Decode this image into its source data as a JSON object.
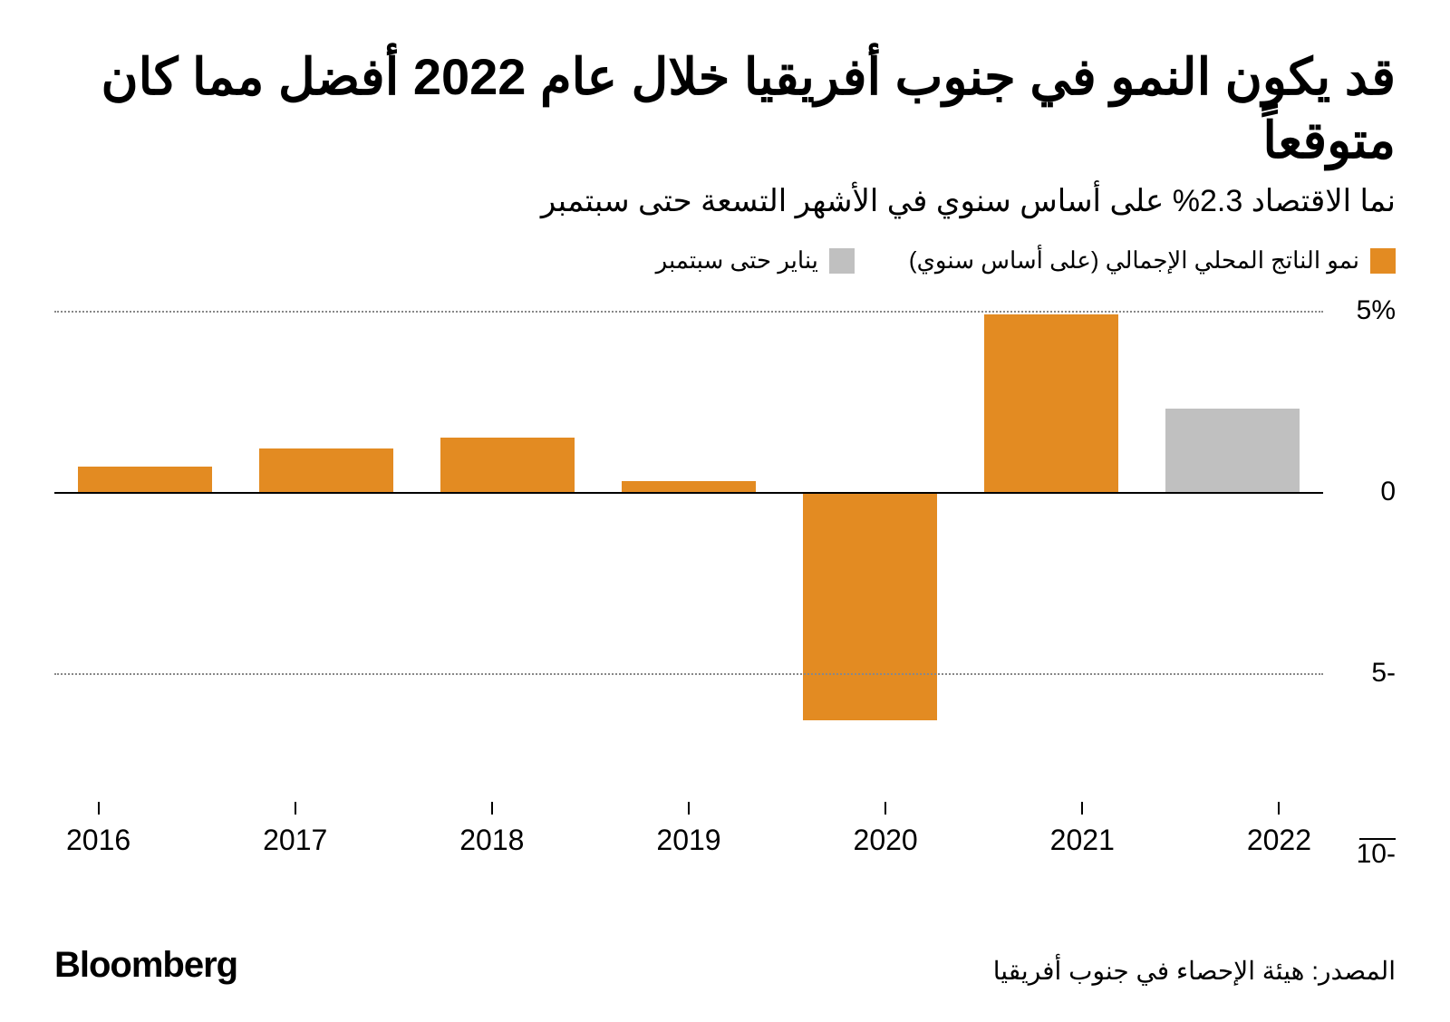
{
  "title": "قد يكون النمو في جنوب أفريقيا خلال عام 2022 أفضل مما كان متوقعاً",
  "subtitle": "نما الاقتصاد 2.3% على أساس سنوي في الأشهر التسعة حتى سبتمبر",
  "legend": {
    "series1": {
      "label": "نمو الناتج المحلي الإجمالي (على أساس سنوي)",
      "color": "#e38b22"
    },
    "series2": {
      "label": "يناير حتى سبتمبر",
      "color": "#c0c0c0"
    }
  },
  "chart": {
    "type": "bar",
    "ylim": [
      -10,
      5
    ],
    "yticks": [
      {
        "value": 5,
        "label": "5%"
      },
      {
        "value": 0,
        "label": "0"
      },
      {
        "value": -5,
        "label": "-5"
      },
      {
        "value": -10,
        "label": "-10"
      }
    ],
    "categories": [
      "2016",
      "2017",
      "2018",
      "2019",
      "2020",
      "2021",
      "2022"
    ],
    "values": [
      0.7,
      1.2,
      1.5,
      0.3,
      -6.3,
      4.9,
      2.3
    ],
    "bar_colors": [
      "#e38b22",
      "#e38b22",
      "#e38b22",
      "#e38b22",
      "#e38b22",
      "#e38b22",
      "#c0c0c0"
    ],
    "background_color": "#ffffff",
    "grid_color": "#888888",
    "zero_line_color": "#000000",
    "bar_width": 0.74,
    "title_fontsize": 56,
    "subtitle_fontsize": 34,
    "axis_fontsize": 30
  },
  "source": "المصدر: هيئة الإحصاء في جنوب أفريقيا",
  "brand": "Bloomberg"
}
